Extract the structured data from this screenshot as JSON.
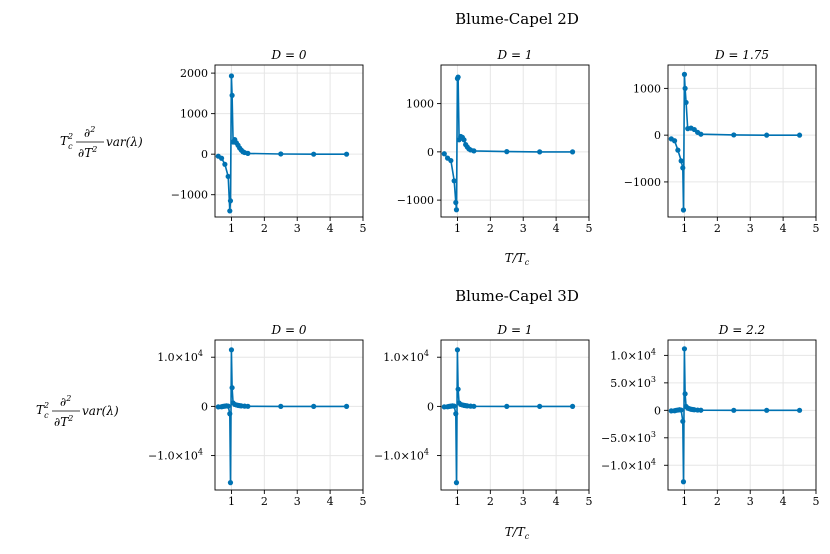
{
  "chart_data": [
    {
      "type": "line",
      "title": "D = 0",
      "xlabel": "",
      "ylabel": "",
      "xlim": [
        0.5,
        5
      ],
      "ylim": [
        -1550,
        2200
      ],
      "xticks": [
        "1",
        "2",
        "3",
        "4",
        "5"
      ],
      "yticks": [
        "2000",
        "1000",
        "0",
        "−1000"
      ],
      "grid": true,
      "series": [
        {
          "x": [
            0.6,
            0.7,
            0.8,
            0.9,
            0.95,
            0.97,
            1.0,
            1.02,
            1.05,
            1.1,
            1.15,
            1.2,
            1.25,
            1.3,
            1.35,
            1.4,
            1.5,
            2.5,
            3.5,
            4.5
          ],
          "y": [
            -50,
            -100,
            -250,
            -550,
            -1400,
            -1150,
            1930,
            1450,
            300,
            360,
            280,
            220,
            150,
            100,
            60,
            40,
            20,
            5,
            0,
            0
          ]
        }
      ]
    },
    {
      "type": "line",
      "title": "D = 1",
      "xlabel": "",
      "ylabel": "",
      "xlim": [
        0.5,
        5
      ],
      "ylim": [
        -1350,
        1800
      ],
      "xticks": [
        "1",
        "2",
        "3",
        "4",
        "5"
      ],
      "yticks": [
        "1000",
        "0",
        "−1000"
      ],
      "grid": true,
      "series": [
        {
          "x": [
            0.6,
            0.7,
            0.8,
            0.9,
            0.95,
            0.97,
            1.0,
            1.02,
            1.05,
            1.1,
            1.15,
            1.2,
            1.25,
            1.3,
            1.35,
            1.4,
            1.5,
            2.5,
            3.5,
            4.5
          ],
          "y": [
            -40,
            -130,
            -180,
            -600,
            -1050,
            -1200,
            1520,
            1550,
            250,
            320,
            300,
            250,
            150,
            100,
            60,
            40,
            20,
            5,
            0,
            0
          ]
        }
      ]
    },
    {
      "type": "line",
      "title": "D = 1.75",
      "xlabel": "",
      "ylabel": "",
      "xlim": [
        0.5,
        5
      ],
      "ylim": [
        -1750,
        1500
      ],
      "xticks": [
        "1",
        "2",
        "3",
        "4",
        "5"
      ],
      "yticks": [
        "1000",
        "0",
        "−1000"
      ],
      "grid": true,
      "series": [
        {
          "x": [
            0.6,
            0.7,
            0.8,
            0.9,
            0.95,
            0.97,
            1.0,
            1.02,
            1.05,
            1.1,
            1.2,
            1.3,
            1.4,
            1.5,
            2.5,
            3.5,
            4.5
          ],
          "y": [
            -80,
            -120,
            -320,
            -550,
            -700,
            -1600,
            1300,
            1000,
            700,
            140,
            150,
            120,
            60,
            20,
            5,
            0,
            0
          ]
        }
      ]
    },
    {
      "type": "line",
      "title": "D = 0",
      "xlabel": "",
      "ylabel": "",
      "xlim": [
        0.5,
        5
      ],
      "ylim": [
        -17000,
        13500
      ],
      "xticks": [
        "1",
        "2",
        "3",
        "4",
        "5"
      ],
      "yticks": [
        "1.0×10",
        "0",
        "−1.0×10"
      ],
      "grid": true,
      "series": [
        {
          "x": [
            0.6,
            0.7,
            0.75,
            0.8,
            0.85,
            0.9,
            0.95,
            0.97,
            1.0,
            1.02,
            1.05,
            1.1,
            1.15,
            1.2,
            1.25,
            1.3,
            1.4,
            1.5,
            2.5,
            3.5,
            4.5
          ],
          "y": [
            -100,
            -80,
            0,
            50,
            100,
            50,
            -1500,
            -15500,
            11500,
            3800,
            700,
            400,
            300,
            200,
            150,
            100,
            50,
            20,
            5,
            0,
            0
          ]
        }
      ]
    },
    {
      "type": "line",
      "title": "D = 1",
      "xlabel": "",
      "ylabel": "",
      "xlim": [
        0.5,
        5
      ],
      "ylim": [
        -17000,
        13500
      ],
      "xticks": [
        "1",
        "2",
        "3",
        "4",
        "5"
      ],
      "yticks": [
        "1.0×10",
        "0",
        "−1.0×10"
      ],
      "grid": true,
      "series": [
        {
          "x": [
            0.6,
            0.7,
            0.75,
            0.8,
            0.85,
            0.9,
            0.95,
            0.97,
            1.0,
            1.02,
            1.05,
            1.1,
            1.15,
            1.2,
            1.25,
            1.3,
            1.4,
            1.5,
            2.5,
            3.5,
            4.5
          ],
          "y": [
            -100,
            -80,
            0,
            50,
            100,
            50,
            -1500,
            -15500,
            11500,
            3500,
            700,
            400,
            300,
            200,
            150,
            100,
            50,
            20,
            5,
            0,
            0
          ]
        }
      ]
    },
    {
      "type": "line",
      "title": "D = 2.2",
      "xlabel": "",
      "ylabel": "",
      "xlim": [
        0.5,
        5
      ],
      "ylim": [
        -14500,
        12800
      ],
      "xticks": [
        "1",
        "2",
        "3",
        "4",
        "5"
      ],
      "yticks": [
        "1.0×10",
        "5.0×10",
        "0",
        "−5.0×10",
        "−1.0×10"
      ],
      "grid": true,
      "series": [
        {
          "x": [
            0.6,
            0.7,
            0.75,
            0.8,
            0.85,
            0.9,
            0.95,
            0.97,
            1.0,
            1.02,
            1.05,
            1.1,
            1.15,
            1.2,
            1.25,
            1.3,
            1.4,
            1.5,
            2.5,
            3.5,
            4.5
          ],
          "y": [
            -100,
            -80,
            0,
            50,
            100,
            50,
            -2000,
            -13000,
            11200,
            3000,
            700,
            400,
            300,
            200,
            150,
            100,
            50,
            20,
            5,
            0,
            0
          ]
        }
      ]
    }
  ],
  "labels": {
    "title_2d": "Blume-Capel 2D",
    "title_3d": "Blume-Capel 3D",
    "xlabel": "T/T",
    "xlabel_sub": "c",
    "ylabel_prefix": "T",
    "ylabel_sup": "2",
    "ylabel_sub": "c",
    "frac_num": "∂",
    "frac_num_sup": "2",
    "frac_den": "∂T",
    "frac_den_sup": "2",
    "ylabel_2d_tail": "var(λ)",
    "ylabel_3d_tail": "var(λ)",
    "tick_exp_pos": "4",
    "tick_exp_mid": "3"
  },
  "colors": {
    "series": "#0072b2",
    "grid": "#e6e6e6",
    "axis": "#000000"
  }
}
